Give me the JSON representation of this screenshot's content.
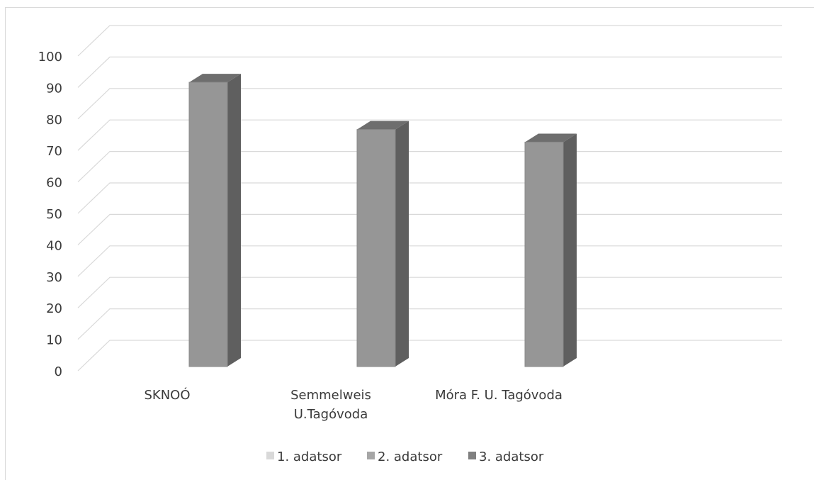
{
  "chart_data": {
    "type": "bar",
    "variant": "3d-column",
    "categories": [
      "SKNOÓ",
      "Semmelweis U.Tagóvoda",
      "Móra F. U. Tagóvoda"
    ],
    "category_lines": [
      [
        "SKNOÓ"
      ],
      [
        "Semmelweis",
        "U.Tagóvoda"
      ],
      [
        "Móra F. U. Tagóvoda"
      ]
    ],
    "series": [
      {
        "name": "1. adatsor",
        "color": "#d9d9d9",
        "values": [
          null,
          null,
          null
        ]
      },
      {
        "name": "2. adatsor",
        "color": "#a6a6a6",
        "values": [
          93,
          78,
          74
        ]
      },
      {
        "name": "3. adatsor",
        "color": "#808080",
        "values": [
          null,
          null,
          null
        ]
      }
    ],
    "ylim": [
      0,
      100
    ],
    "yticks": [
      0,
      10,
      20,
      30,
      40,
      50,
      60,
      70,
      80,
      90,
      100
    ],
    "grid": true,
    "legend_position": "bottom",
    "bar_colors": {
      "front": "#969696",
      "side": "#5f5f5f",
      "top": "#6e6e6e",
      "outline": "#8a8a8a"
    },
    "grid_color": "#d9d9d9"
  }
}
